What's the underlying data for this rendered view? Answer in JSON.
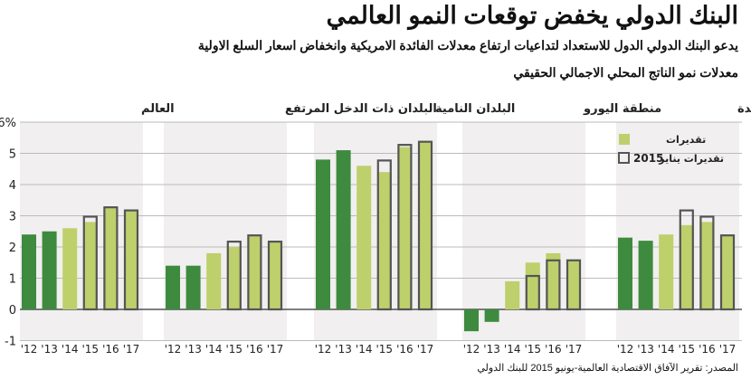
{
  "header": {
    "title": "البنك الدولي يخفض توقعات النمو العالمي",
    "subtitle": "يدعو البنك الدولي الدول للاستعداد لتداعيات ارتفاع معدلات الفائدة الامريكية وانخفاض اسعار السلع الاولية",
    "measure": "معدلات نمو الناتج المحلي الاجمالي الحقيقي"
  },
  "source": "المصدر: تقرير الآفاق الاقتصادية العالمية-يونيو 2015 للبنك الدولي",
  "colors": {
    "actual": "#3e8a3f",
    "estimate": "#bdd06b",
    "jan_outline": "#555555",
    "panel_bg": "#f1efef"
  },
  "chart_data": {
    "type": "bar",
    "ylabel": "",
    "ylim": [
      -1,
      6
    ],
    "yticks": [
      "6%",
      "5",
      "4",
      "3",
      "2",
      "1",
      "0",
      "-1"
    ],
    "categories": [
      "'12",
      "'13",
      "'14",
      "'15",
      "'16",
      "'17"
    ],
    "legend": {
      "estimate": "تقديرات",
      "jan_estimate": "تقديرات يناير",
      "jan_year": "2015"
    },
    "grid": true,
    "panels": [
      {
        "name": "العالم",
        "values": [
          2.4,
          2.5,
          2.6,
          2.8,
          3.3,
          3.2
        ],
        "jan_2015": [
          null,
          null,
          null,
          3.0,
          3.3,
          3.2
        ],
        "estimate_from_index": 2
      },
      {
        "name": "البلدان ذات الدخل المرتفع",
        "values": [
          1.4,
          1.4,
          1.8,
          2.0,
          2.4,
          2.2
        ],
        "jan_2015": [
          null,
          null,
          null,
          2.2,
          2.4,
          2.2
        ],
        "estimate_from_index": 2
      },
      {
        "name": "البلدان النامية",
        "values": [
          4.8,
          5.1,
          4.6,
          4.4,
          5.2,
          5.4
        ],
        "jan_2015": [
          null,
          null,
          null,
          4.8,
          5.3,
          5.4
        ],
        "estimate_from_index": 2
      },
      {
        "name": "منطقة اليورو",
        "values": [
          -0.7,
          -0.4,
          0.9,
          1.5,
          1.8,
          1.6
        ],
        "jan_2015": [
          null,
          null,
          null,
          1.1,
          1.6,
          1.6
        ],
        "estimate_from_index": 2
      },
      {
        "name": "الولايات المتحدة",
        "values": [
          2.3,
          2.2,
          2.4,
          2.7,
          2.8,
          2.4
        ],
        "jan_2015": [
          null,
          null,
          null,
          3.2,
          3.0,
          2.4
        ],
        "estimate_from_index": 2
      }
    ]
  }
}
